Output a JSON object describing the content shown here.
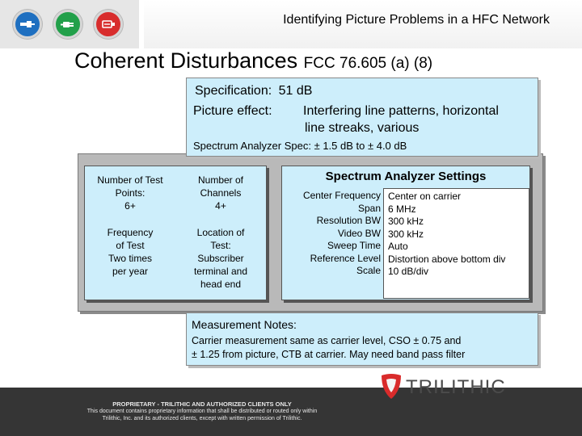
{
  "header": {
    "title": "Identifying Picture Problems in a HFC Network",
    "icons": [
      "cable-connector-icon",
      "plug-icon",
      "signal-plug-icon"
    ]
  },
  "slide": {
    "title_main": "Coherent Disturbances",
    "title_sub": "FCC 76.605 (a) (8)"
  },
  "spec": {
    "spec_label": "Specification:",
    "spec_value": "51 dB",
    "effect_label": "Picture effect:",
    "effect_line1": "Interfering line patterns, horizontal",
    "effect_line2": "line streaks, various",
    "analyzer_spec": "Spectrum Analyzer Spec:  ± 1.5 dB to ± 4.0 dB"
  },
  "info": {
    "test_points_label1": "Number of Test",
    "test_points_label2": "Points:",
    "test_points_value": "6+",
    "channels_label1": "Number of",
    "channels_label2": "Channels",
    "channels_value": "4+",
    "frequency_label1": "Frequency",
    "frequency_label2": "of Test",
    "frequency_value1": "Two times",
    "frequency_value2": "per year",
    "location_label1": "Location of",
    "location_label2": "Test:",
    "location_value1": "Subscriber",
    "location_value2": "terminal and",
    "location_value3": "head end"
  },
  "settings": {
    "title": "Spectrum Analyzer Settings",
    "rows": [
      {
        "label": "Center Frequency",
        "value": "Center on carrier"
      },
      {
        "label": "Span",
        "value": "6 MHz"
      },
      {
        "label": "Resolution BW",
        "value": "300 kHz"
      },
      {
        "label": "Video BW",
        "value": "300 kHz"
      },
      {
        "label": "Sweep Time",
        "value": "Auto"
      },
      {
        "label": "Reference Level",
        "value": "Distortion  above bottom div"
      },
      {
        "label": "Scale",
        "value": "10 dB/div"
      }
    ]
  },
  "notes": {
    "title": "Measurement Notes:",
    "line1": "Carrier measurement same as carrier level, CSO ± 0.75 and",
    "line2": "± 1.25 from picture, CTB at carrier.  May need band pass filter"
  },
  "footer": {
    "line1": "PROPRIETARY - TRILITHIC AND AUTHORIZED CLIENTS ONLY",
    "line2": "This document contains proprietary information that shall be distributed or routed only within",
    "line3": "Trilithic, Inc. and its authorized clients, except with written permission of Trilithic.",
    "brand": "TRILITHIC",
    "brand_color": "#d92b2b"
  }
}
